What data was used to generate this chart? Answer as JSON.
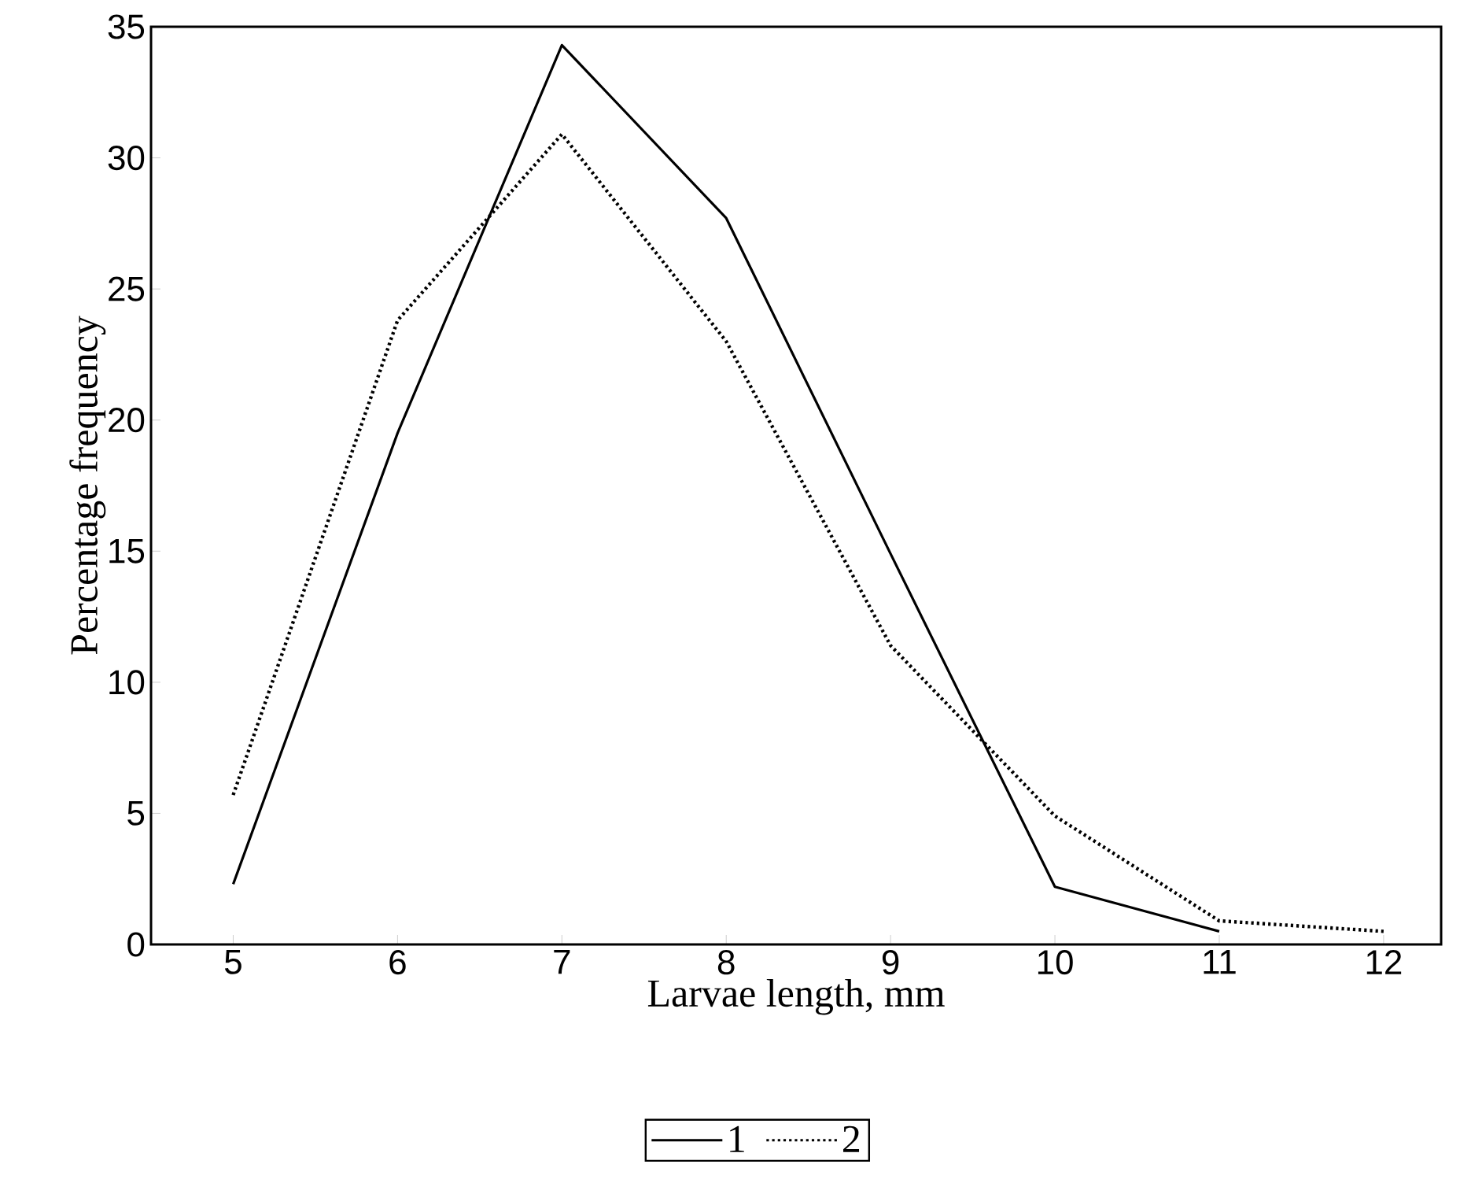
{
  "chart_data": {
    "type": "line",
    "xlabel": "Larvae length, mm",
    "ylabel": "Percentage frequency",
    "x": [
      5,
      6,
      7,
      8,
      9,
      10,
      11,
      12
    ],
    "series": [
      {
        "name": "1",
        "color": "#000000",
        "line_style": "solid",
        "values": [
          2.3,
          19.5,
          34.3,
          27.7,
          14.9,
          2.2,
          0.5,
          null
        ]
      },
      {
        "name": "2",
        "color": "#000000",
        "line_style": "dotted",
        "values": [
          5.7,
          23.8,
          30.9,
          23,
          11.4,
          4.9,
          0.9,
          0.5
        ]
      }
    ],
    "xlim": [
      4.5,
      12.35
    ],
    "ylim": [
      0,
      35
    ],
    "xticks": [
      5,
      6,
      7,
      8,
      9,
      10,
      11,
      12
    ],
    "yticks": [
      0,
      5,
      10,
      15,
      20,
      25,
      30,
      35
    ],
    "grid": false,
    "legend": "bottom",
    "marker": "none"
  }
}
